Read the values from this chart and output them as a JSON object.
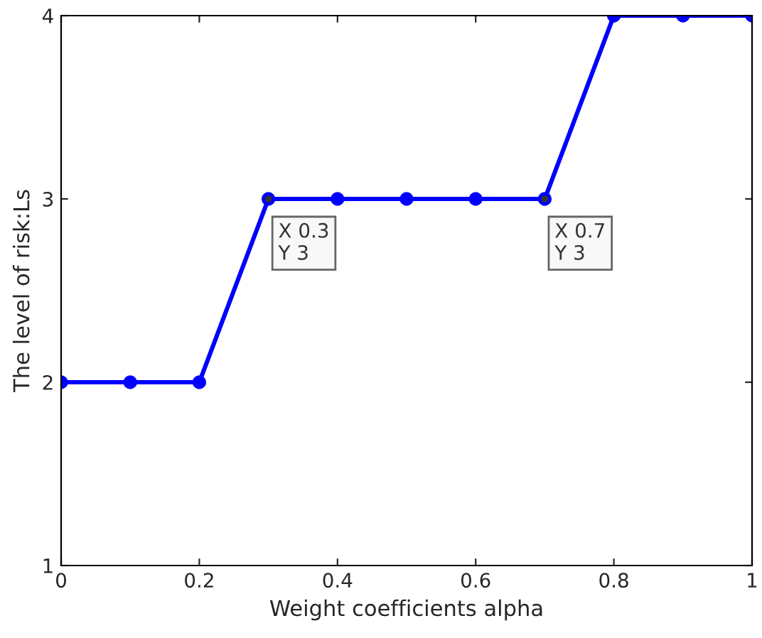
{
  "chart_data": {
    "type": "line",
    "xlabel": "Weight coefficients alpha",
    "ylabel": "The level of risk:Ls",
    "x": [
      0,
      0.1,
      0.2,
      0.3,
      0.4,
      0.5,
      0.6,
      0.7,
      0.8,
      0.9,
      1
    ],
    "series": [
      {
        "color": "#0000ff",
        "values": [
          2,
          2,
          2,
          3,
          3,
          3,
          3,
          3,
          4,
          4,
          4
        ]
      }
    ],
    "xlim": [
      0,
      1
    ],
    "xticks": [
      0,
      0.2,
      0.4,
      0.6,
      0.8,
      1
    ],
    "ylim": [
      1,
      4
    ],
    "yticks": [
      1,
      2,
      3,
      4
    ],
    "marker": "circle",
    "line_style": "solid",
    "grid": false,
    "annotations": [
      {
        "text": "X 0.3\nY 3",
        "x": 0.3,
        "y": 3
      },
      {
        "text": "X 0.7\nY 3",
        "x": 0.7,
        "y": 3
      }
    ]
  }
}
